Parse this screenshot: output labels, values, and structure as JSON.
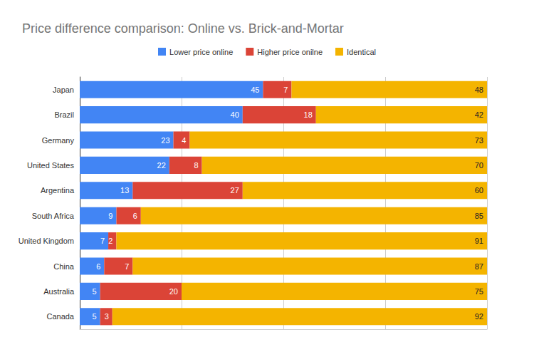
{
  "chart_data": {
    "type": "bar",
    "title": "Price difference comparison: Online vs. Brick-and-Mortar",
    "categories": [
      "Japan",
      "Brazil",
      "Germany",
      "United States",
      "Argentina",
      "South Africa",
      "United Kingdom",
      "China",
      "Australia",
      "Canada"
    ],
    "series": [
      {
        "name": "Lower price online",
        "color": "#4285f4",
        "values": [
          45,
          40,
          23,
          22,
          13,
          9,
          7,
          6,
          5,
          5
        ]
      },
      {
        "name": "Higher price onilne",
        "color": "#db4437",
        "values": [
          7,
          18,
          4,
          8,
          27,
          6,
          2,
          7,
          20,
          3
        ]
      },
      {
        "name": "Identical",
        "color": "#f4b400",
        "values": [
          48,
          42,
          73,
          70,
          60,
          85,
          91,
          87,
          75,
          92
        ]
      }
    ],
    "orientation": "horizontal",
    "stacked": true,
    "data_labels": true,
    "xlim": [
      0,
      100
    ],
    "xticks": [
      0,
      25,
      50,
      75,
      100
    ],
    "grid": true,
    "legend": "top",
    "tick_labels": "y"
  }
}
